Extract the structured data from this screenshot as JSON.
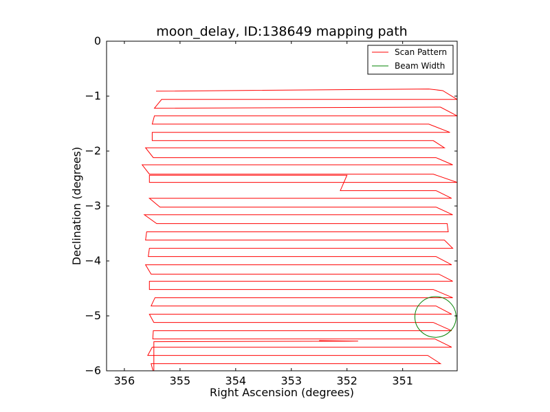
{
  "chart_data": {
    "type": "line",
    "title": "moon_delay, ID:138649 mapping path",
    "xlabel": "Right Ascension (degrees)",
    "ylabel": "Declination (degrees)",
    "xlim": [
      356.32,
      350.02
    ],
    "ylim": [
      -6,
      0
    ],
    "xticks": [
      356,
      355,
      354,
      353,
      352,
      351
    ],
    "yticks": [
      0,
      -1,
      -2,
      -3,
      -4,
      -5,
      -6
    ],
    "xtick_labels": [
      "356",
      "355",
      "354",
      "353",
      "352",
      "351"
    ],
    "ytick_labels": [
      "0",
      "−1",
      "−2",
      "−3",
      "−4",
      "−5",
      "−6"
    ],
    "legend_position": "top-right",
    "series": [
      {
        "name": "Scan Pattern",
        "color": "#ff0000",
        "mark": "line",
        "x": [
          355.43,
          350.53,
          350.28,
          350.02,
          355.33,
          355.46,
          350.32,
          350.02,
          355.46,
          355.5,
          350.53,
          350.15,
          355.5,
          355.5,
          350.45,
          350.25,
          355.62,
          355.48,
          350.4,
          350.1,
          355.68,
          355.55,
          350.45,
          350.02,
          355.55,
          355.55,
          352.0,
          352.12,
          350.4,
          350.12,
          355.55,
          355.36,
          350.4,
          350.1,
          355.64,
          355.42,
          350.2,
          350.18,
          355.6,
          355.62,
          350.25,
          350.1,
          355.55,
          355.57,
          350.4,
          350.12,
          355.62,
          355.52,
          350.35,
          350.1,
          355.55,
          355.55,
          350.45,
          350.1,
          355.45,
          355.52,
          350.4,
          350.12,
          355.55,
          355.47,
          350.45,
          350.12,
          355.48,
          355.49,
          350.42,
          350.12,
          355.5,
          355.58,
          350.55,
          350.32,
          355.52,
          355.48,
          350.55,
          350.12,
          355.47,
          355.47,
          351.8,
          352.5
        ],
        "y": [
          -0.91,
          -0.87,
          -0.9,
          -1.06,
          -1.06,
          -1.22,
          -1.2,
          -1.36,
          -1.36,
          -1.51,
          -1.51,
          -1.66,
          -1.66,
          -1.81,
          -1.81,
          -1.94,
          -1.94,
          -2.12,
          -2.12,
          -2.25,
          -2.25,
          -2.42,
          -2.42,
          -2.57,
          -2.57,
          -2.44,
          -2.44,
          -2.72,
          -2.72,
          -2.86,
          -2.86,
          -3.02,
          -3.02,
          -3.16,
          -3.16,
          -3.32,
          -3.32,
          -3.47,
          -3.47,
          -3.62,
          -3.62,
          -3.77,
          -3.77,
          -3.92,
          -3.92,
          -4.07,
          -4.07,
          -4.24,
          -4.24,
          -4.37,
          -4.37,
          -4.52,
          -4.52,
          -4.67,
          -4.67,
          -4.82,
          -4.82,
          -4.97,
          -4.97,
          -5.12,
          -5.12,
          -5.27,
          -5.27,
          -5.42,
          -5.42,
          -5.57,
          -5.57,
          -5.72,
          -5.72,
          -5.87,
          -5.87,
          -6.02,
          -6.02,
          -6.17,
          -6.17,
          -5.47,
          -5.46,
          -5.45
        ]
      },
      {
        "name": "Beam Width",
        "color": "#008000",
        "mark": "circle",
        "center": [
          350.41,
          -5.02
        ],
        "radius": 0.37
      }
    ]
  }
}
